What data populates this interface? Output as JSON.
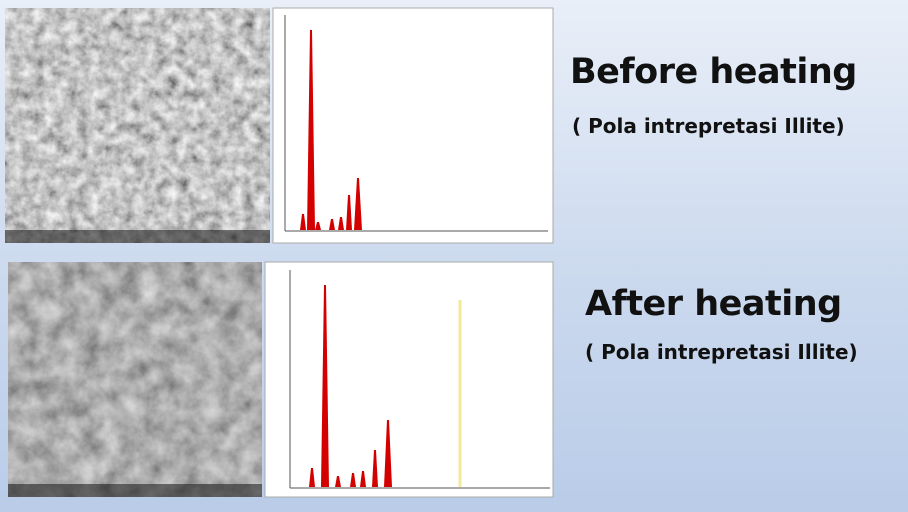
{
  "panels": [
    {
      "heading": "Before heating",
      "caption": "( Pola intrepretasi Illite)"
    },
    {
      "heading": "After heating",
      "caption": "( Pola intrepretasi Illite)"
    }
  ]
}
